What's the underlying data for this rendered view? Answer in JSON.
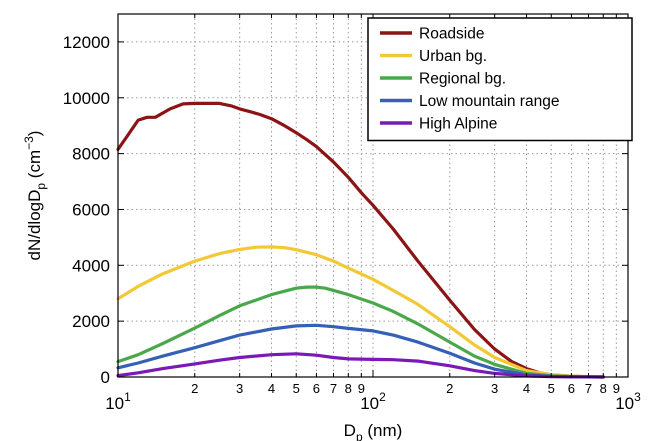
{
  "chart_data": {
    "type": "line",
    "title": "",
    "xlabel": {
      "base": "D",
      "sub": "p",
      "unit": " (nm)"
    },
    "ylabel": {
      "pre": "dN/dlogD",
      "sub": "p",
      "mid": " (cm",
      "sup": "−3",
      "post": ")"
    },
    "x_scale": "log",
    "xlim": [
      10,
      1000
    ],
    "ylim": [
      0,
      13000
    ],
    "y_ticks": [
      0,
      2000,
      4000,
      6000,
      8000,
      10000,
      12000
    ],
    "y_tick_labels": [
      "0",
      "2000",
      "4000",
      "6000",
      "8000",
      "10000",
      "12000"
    ],
    "x_major_ticks": [
      {
        "value": 10,
        "base": "10",
        "exp": "1"
      },
      {
        "value": 100,
        "base": "10",
        "exp": "2"
      },
      {
        "value": 1000,
        "base": "10",
        "exp": "3"
      }
    ],
    "x_minor_ticks": [
      {
        "value": 20,
        "label": "2"
      },
      {
        "value": 30,
        "label": "3"
      },
      {
        "value": 40,
        "label": "4"
      },
      {
        "value": 50,
        "label": "5"
      },
      {
        "value": 60,
        "label": "6"
      },
      {
        "value": 70,
        "label": "7"
      },
      {
        "value": 80,
        "label": "8"
      },
      {
        "value": 90,
        "label": "9"
      },
      {
        "value": 200,
        "label": "2"
      },
      {
        "value": 300,
        "label": "3"
      },
      {
        "value": 400,
        "label": "4"
      },
      {
        "value": 500,
        "label": "5"
      },
      {
        "value": 600,
        "label": "6"
      },
      {
        "value": 700,
        "label": "7"
      },
      {
        "value": 800,
        "label": "8"
      },
      {
        "value": 900,
        "label": "9"
      }
    ],
    "grid": true,
    "legend_position": "top-right",
    "series": [
      {
        "name": "Roadside",
        "color": "#8b1414",
        "x": [
          10,
          11,
          12,
          13,
          14,
          16,
          18,
          20,
          22,
          25,
          28,
          30,
          33,
          36,
          40,
          45,
          50,
          55,
          60,
          70,
          80,
          90,
          100,
          120,
          150,
          200,
          250,
          300,
          350,
          400,
          450,
          500,
          600,
          700,
          800
        ],
        "y": [
          8150,
          8700,
          9200,
          9300,
          9300,
          9600,
          9780,
          9800,
          9800,
          9800,
          9700,
          9600,
          9500,
          9400,
          9250,
          9000,
          8750,
          8500,
          8250,
          7700,
          7150,
          6600,
          6150,
          5300,
          4150,
          2750,
          1700,
          1000,
          550,
          300,
          150,
          80,
          30,
          10,
          0
        ]
      },
      {
        "name": "Urban bg.",
        "color": "#f2c934",
        "x": [
          10,
          12,
          15,
          20,
          25,
          30,
          35,
          40,
          45,
          50,
          60,
          70,
          80,
          100,
          120,
          150,
          200,
          250,
          300,
          400,
          500,
          600,
          800
        ],
        "y": [
          2800,
          3250,
          3700,
          4150,
          4420,
          4570,
          4650,
          4660,
          4630,
          4560,
          4380,
          4150,
          3900,
          3500,
          3100,
          2600,
          1800,
          1150,
          700,
          230,
          80,
          30,
          0
        ]
      },
      {
        "name": "Regional bg.",
        "color": "#4aa84a",
        "x": [
          10,
          12,
          15,
          20,
          25,
          30,
          40,
          50,
          55,
          60,
          65,
          70,
          80,
          100,
          120,
          150,
          200,
          250,
          300,
          400,
          500,
          600,
          800
        ],
        "y": [
          550,
          800,
          1200,
          1750,
          2200,
          2550,
          2950,
          3180,
          3220,
          3220,
          3180,
          3100,
          2950,
          2650,
          2350,
          1900,
          1250,
          750,
          450,
          130,
          40,
          15,
          0
        ]
      },
      {
        "name": "Low mountain range",
        "color": "#3560b5",
        "x": [
          10,
          12,
          15,
          20,
          25,
          30,
          40,
          50,
          60,
          70,
          80,
          100,
          120,
          150,
          200,
          250,
          300,
          400,
          500,
          600,
          800
        ],
        "y": [
          330,
          500,
          750,
          1050,
          1300,
          1500,
          1720,
          1830,
          1850,
          1800,
          1740,
          1650,
          1500,
          1250,
          850,
          500,
          280,
          80,
          25,
          10,
          0
        ]
      },
      {
        "name": "High Alpine",
        "color": "#7a18b8",
        "x": [
          10,
          12,
          15,
          20,
          25,
          30,
          40,
          50,
          60,
          70,
          80,
          100,
          120,
          150,
          200,
          250,
          300,
          400,
          500,
          600,
          800
        ],
        "y": [
          50,
          150,
          300,
          470,
          600,
          700,
          800,
          830,
          780,
          700,
          650,
          630,
          620,
          570,
          400,
          230,
          130,
          40,
          15,
          5,
          0
        ]
      }
    ]
  }
}
